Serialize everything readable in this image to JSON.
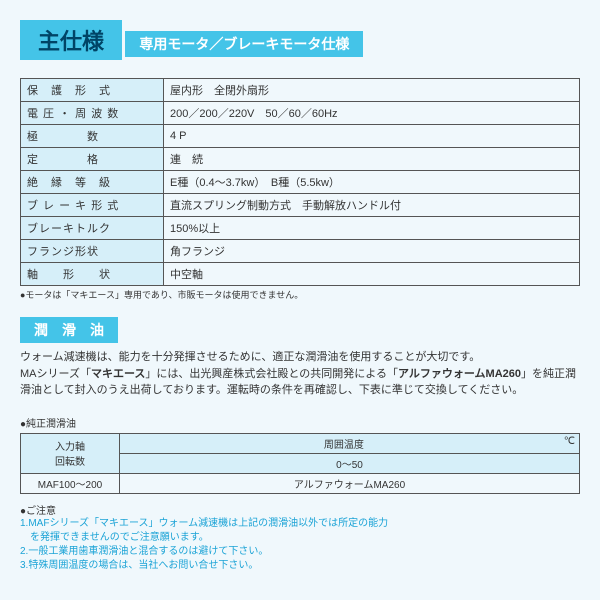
{
  "title": "主仕様",
  "motor": {
    "heading": "専用モータ／ブレーキモータ仕様",
    "rows": [
      {
        "label": "保　護　形　式",
        "value": "屋内形　全閉外扇形"
      },
      {
        "label": "電 圧 ・ 周 波 数",
        "value": "200／200／220V　50／60／60Hz"
      },
      {
        "label": "極　　　　数",
        "value": "4 P"
      },
      {
        "label": "定　　　　格",
        "value": "連　続"
      },
      {
        "label": "絶　縁　等　級",
        "value": "E種（0.4～3.7kw）　B種（5.5kw）"
      },
      {
        "label": "ブ レ ー キ 形 式",
        "value": "直流スプリング制動方式　手動解放ハンドル付"
      },
      {
        "label": "ブレーキトルク",
        "value": "150%以上"
      },
      {
        "label": "フランジ形状",
        "value": "角フランジ"
      },
      {
        "label": "軸　　形　　状",
        "value": "中空軸"
      }
    ],
    "note": "●モータは「マキエース」専用であり、市販モータは使用できません。"
  },
  "lubricant": {
    "heading": "潤　滑　油",
    "intro1": "ウォーム減速機は、能力を十分発揮させるために、適正な潤滑油を使用することが大切です。",
    "intro2a": "MAシリーズ「",
    "intro2b": "マキエース",
    "intro2c": "」には、出光興産株式会社殿との共同開発による「",
    "intro2d": "アルファウォームMA260",
    "intro2e": "」を純正潤滑油として封入のうえ出荷しております。運転時の条件を再確認し、下表に準じて交換してください。",
    "tablelabel": "●純正潤滑油",
    "col1a": "入力軸",
    "col1b": "回転数",
    "col2a": "周囲温度",
    "col2b": "℃",
    "range": "0～50",
    "rpm": "MAF100～200",
    "oil": "アルファウォームMA260"
  },
  "caution": {
    "title": "●ご注意",
    "lines": [
      "1.MAFシリーズ「マキエース」ウォーム減速機は上記の潤滑油以外では所定の能力",
      "　を発揮できませんのでご注意願います。",
      "2.一般工業用歯車潤滑油と混合するのは避けて下さい。",
      "3.特殊周囲温度の場合は、当社へお問い合せ下さい。"
    ]
  }
}
